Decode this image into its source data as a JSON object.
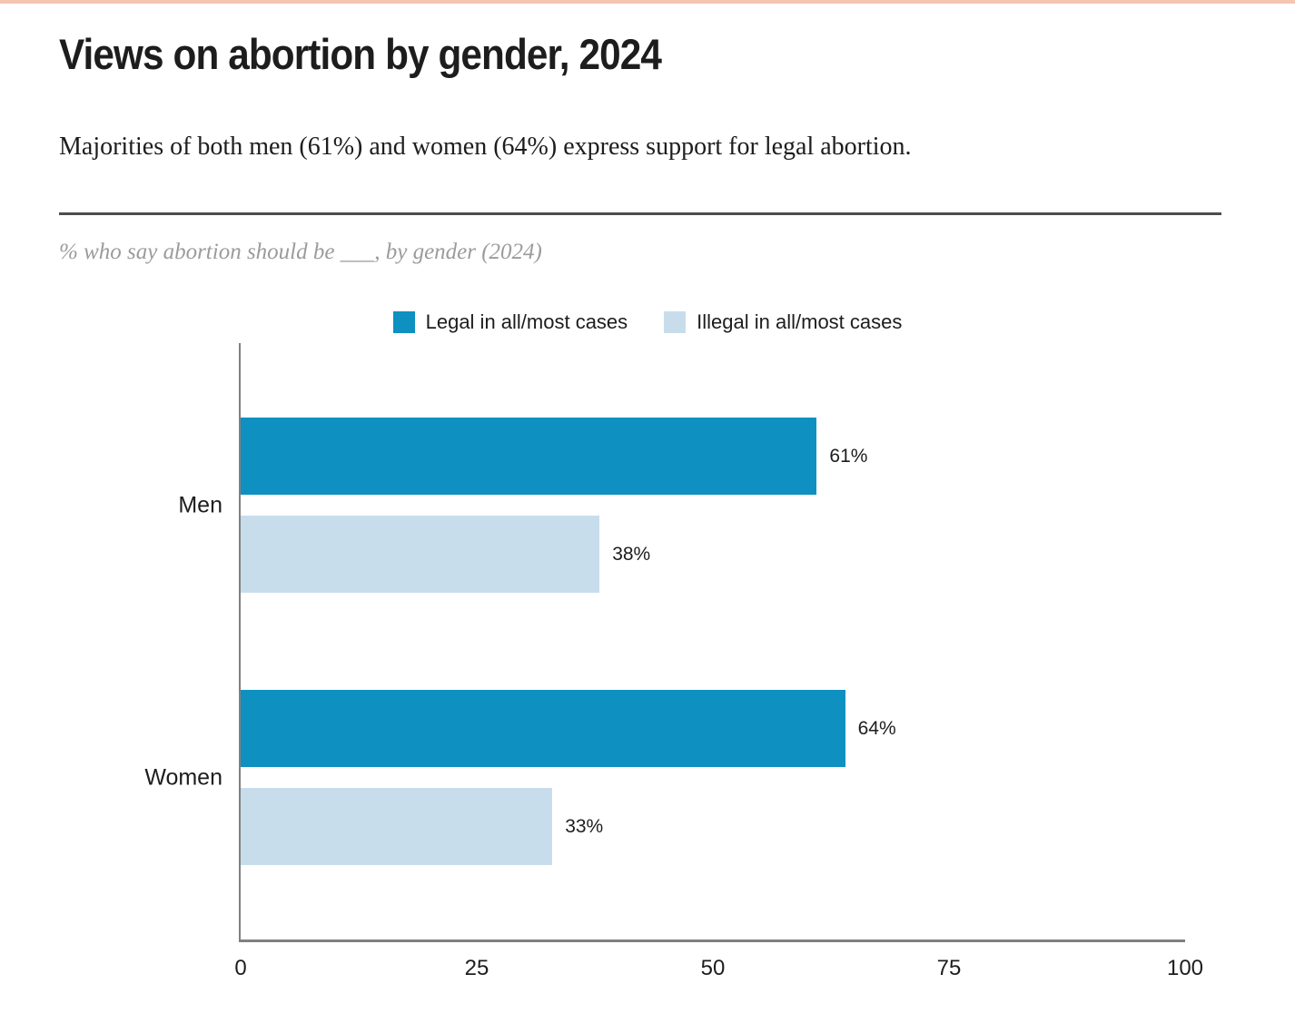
{
  "header": {
    "title": "Views on abortion by gender, 2024",
    "subtitle": "Majorities of both men (61%) and women (64%) express support for legal abortion.",
    "note": "% who say abortion should be ___, by gender (2024)"
  },
  "colors": {
    "top_accent": "#f4c6b2",
    "divider": "#4d4d4d",
    "axis": "#808080",
    "legal_series": "#0e90c1",
    "illegal_series": "#c8ddec"
  },
  "chart_data": {
    "type": "bar",
    "orientation": "horizontal",
    "title": "Views on abortion by gender, 2024",
    "categories": [
      "Men",
      "Women"
    ],
    "series": [
      {
        "key": "legal",
        "name": "Legal in all/most cases",
        "color": "#0e90c1",
        "values": [
          61,
          64
        ]
      },
      {
        "key": "illegal",
        "name": "Illegal in all/most cases",
        "color": "#c8ddec",
        "values": [
          38,
          33
        ]
      }
    ],
    "value_labels": {
      "legal": [
        "61%",
        "64%"
      ],
      "illegal": [
        "38%",
        "33%"
      ]
    },
    "value_suffix": "%",
    "xlim": [
      0,
      100
    ],
    "x_ticks": [
      0,
      25,
      50,
      75,
      100
    ],
    "legend_position": "top-center",
    "grid": false
  }
}
